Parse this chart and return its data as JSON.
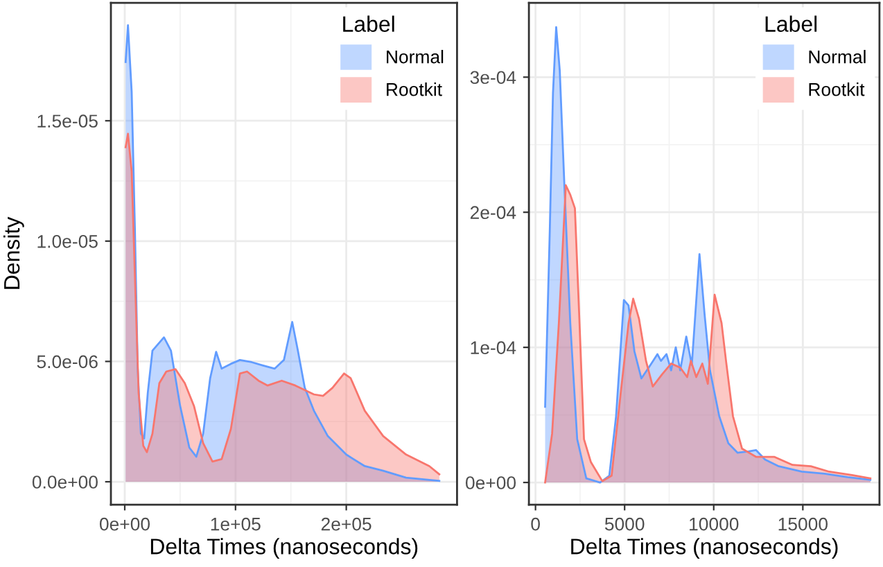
{
  "chart_data": [
    {
      "type": "area",
      "xlabel": "Delta Times (nanoseconds)",
      "ylabel": "Density",
      "legend_title": "Label",
      "legend": "top right",
      "grid": true,
      "xlim": [
        -12500,
        300000
      ],
      "xticks": [
        {
          "value": 0,
          "label": "0e+00"
        },
        {
          "value": 100000,
          "label": "1e+05"
        },
        {
          "value": 200000,
          "label": "2e+05"
        }
      ],
      "ylim": [
        -9.5e-07,
        1.99e-05
      ],
      "yticks": [
        {
          "value": 0,
          "label": "0.0e+00"
        },
        {
          "value": 5e-06,
          "label": "5.0e-06"
        },
        {
          "value": 1e-05,
          "label": "1.0e-05"
        },
        {
          "value": 1.5e-05,
          "label": "1.5e-05"
        }
      ],
      "series": [
        {
          "name": "Normal",
          "color": "#619cff",
          "x": [
            800,
            2900,
            6250,
            9200,
            11700,
            14600,
            17500,
            20800,
            25000,
            35400,
            41700,
            50000,
            58300,
            64600,
            70800,
            77100,
            82500,
            87500,
            95800,
            104000,
            114600,
            125000,
            135400,
            143700,
            151200,
            156300,
            162500,
            170800,
            183300,
            200000,
            216700,
            233300,
            254000,
            284000
          ],
          "values": [
            1.744e-05,
            1.897e-05,
            1.62e-05,
            1.04e-05,
            4.7e-06,
            2e-06,
            1.8e-06,
            3.7e-06,
            5.45e-06,
            6e-06,
            5.45e-06,
            3.15e-06,
            1.42e-06,
            1.04e-06,
            2e-06,
            4.3e-06,
            5.4e-06,
            4.7e-06,
            4.9e-06,
            5.06e-06,
            4.97e-06,
            4.83e-06,
            4.7e-06,
            5.06e-06,
            6.64e-06,
            5.45e-06,
            3.91e-06,
            2.95e-06,
            1.9e-06,
            1.13e-06,
            6.5e-07,
            4.6e-07,
            1.7e-07,
            4e-08
          ]
        },
        {
          "name": "Rootkit",
          "color": "#f8766d",
          "x": [
            800,
            2900,
            6250,
            9200,
            12500,
            16700,
            20000,
            25000,
            31250,
            37500,
            45800,
            54200,
            62500,
            70800,
            79200,
            87500,
            95800,
            104000,
            110400,
            120800,
            129000,
            141700,
            154000,
            170800,
            179000,
            187500,
            198000,
            204000,
            216700,
            233300,
            254000,
            275000,
            284000
          ],
          "values": [
            1.39e-05,
            1.446e-05,
            1.29e-05,
            8.5e-06,
            3.7e-06,
            1.5e-06,
            1.23e-06,
            2e-06,
            4.1e-06,
            4.58e-06,
            4.68e-06,
            4.1e-06,
            3.15e-06,
            1.6e-06,
            8.4e-07,
            9.4e-07,
            2.19e-06,
            4.5e-06,
            4.58e-06,
            4.2e-06,
            4e-06,
            4.2e-06,
            4e-06,
            3.63e-06,
            3.57e-06,
            3.9e-06,
            4.5e-06,
            4.3e-06,
            2.95e-06,
            1.9e-06,
            1.13e-06,
            6.5e-07,
            3.1e-07
          ]
        }
      ]
    },
    {
      "type": "area",
      "xlabel": "Delta Times (nanoseconds)",
      "legend_title": "Label",
      "legend": "top right",
      "grid": true,
      "xlim": [
        -370,
        19300
      ],
      "xticks": [
        0,
        5000,
        10000,
        15000
      ],
      "ylim": [
        -1.64e-05,
        0.000355
      ],
      "yticks": [
        {
          "value": 0,
          "label": "0e+00"
        },
        {
          "value": 0.0001,
          "label": "1e-04"
        },
        {
          "value": 0.0002,
          "label": "2e-04"
        },
        {
          "value": 0.0003,
          "label": "3e-04"
        }
      ],
      "series": [
        {
          "name": "Normal",
          "color": "#619cff",
          "x": [
            540,
            800,
            980,
            1160,
            1360,
            1620,
            1950,
            2340,
            2850,
            3620,
            4140,
            4520,
            4960,
            5220,
            5550,
            5940,
            6450,
            6840,
            7040,
            7350,
            7610,
            7870,
            8120,
            8460,
            8770,
            9200,
            9490,
            9790,
            10310,
            10820,
            11340,
            11980,
            12370,
            12880,
            13650,
            14940,
            16220,
            17510,
            18790
          ],
          "values": [
            5.6e-05,
            0.000186,
            0.000288,
            0.000337,
            0.000305,
            0.00022,
            0.000118,
            3.2e-05,
            3e-06,
            0,
            5e-06,
            4.9e-05,
            0.000135,
            0.000131,
            9.7e-05,
            7.7e-05,
            8.7e-05,
            9.5e-05,
            9e-05,
            9.5e-05,
            8.3e-05,
            0.0001,
            8.3e-05,
            0.000108,
            8.7e-05,
            0.000169,
            0.000124,
            8.3e-05,
            4.9e-05,
            2.9e-05,
            2.2e-05,
            2.3e-05,
            2.4e-05,
            1.7e-05,
            1.2e-05,
            8e-06,
            6.5e-06,
            4e-06,
            2e-06
          ]
        },
        {
          "name": "Rootkit",
          "color": "#f8766d",
          "x": [
            540,
            930,
            1310,
            1700,
            1950,
            2210,
            2470,
            2720,
            3110,
            3750,
            4270,
            4780,
            5220,
            5480,
            5810,
            6200,
            6580,
            7100,
            7610,
            8120,
            8510,
            8720,
            9020,
            9360,
            9670,
            10050,
            10440,
            10690,
            11080,
            11590,
            12370,
            13390,
            14420,
            15450,
            16480,
            17760,
            18790
          ],
          "values": [
            0,
            3.6e-05,
            0.000118,
            0.00022,
            0.000213,
            0.000203,
            0.000118,
            3.2e-05,
            1.5e-05,
            1e-06,
            5e-06,
            6.6e-05,
            0.000118,
            0.000136,
            0.000121,
            9e-05,
            7.1e-05,
            8e-05,
            8.8e-05,
            8.5e-05,
            7.8e-05,
            9e-05,
            7.8e-05,
            8.8e-05,
            7.3e-05,
            0.000139,
            0.000118,
            9e-05,
            4.9e-05,
            2.5e-05,
            1.9e-05,
            1.9e-05,
            1.3e-05,
            1.2e-05,
            8e-06,
            5.5e-06,
            3e-06
          ]
        }
      ]
    }
  ]
}
